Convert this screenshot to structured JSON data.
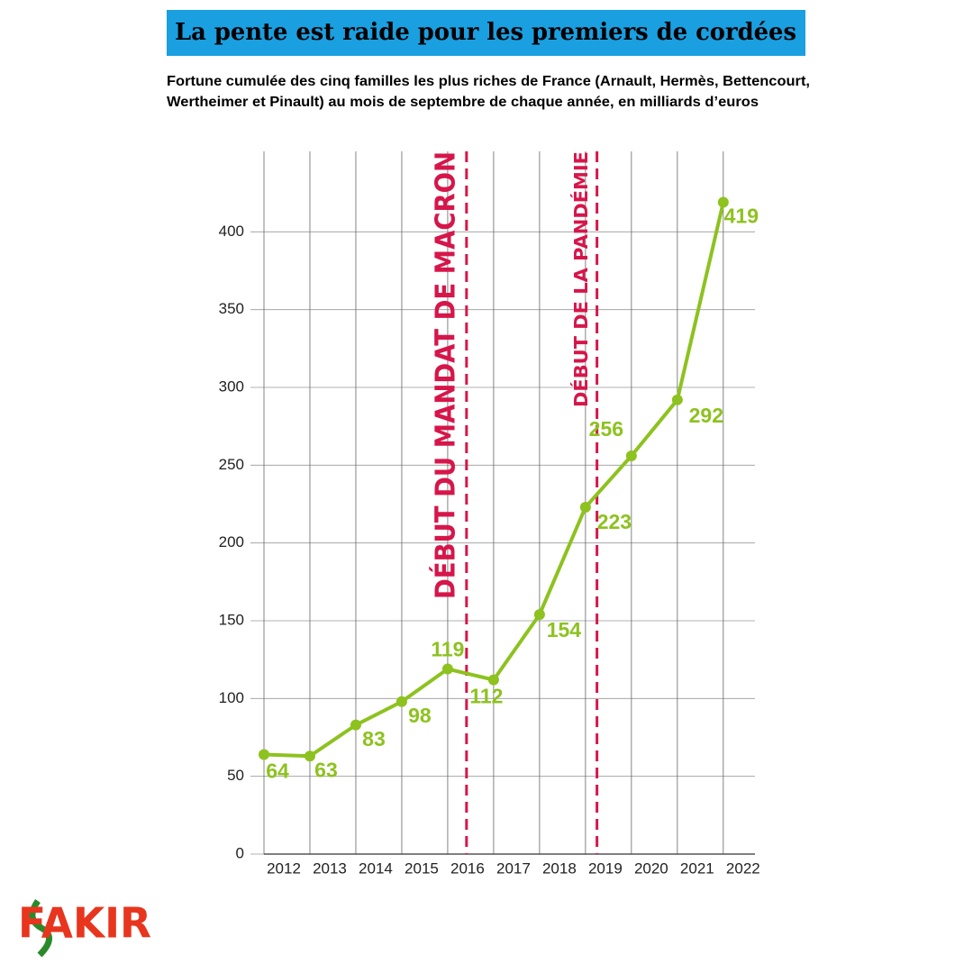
{
  "chart_data": {
    "type": "line",
    "title": "La pente est raide pour les premiers de cordées",
    "subtitle": [
      "Fortune cumulée des cinq familles les plus riches de France (Arnault, Hermès, Bettencourt,",
      "Wertheimer et Pinault) au mois de septembre de chaque année, en milliards d’euros"
    ],
    "x": [
      2012,
      2013,
      2014,
      2015,
      2016,
      2017,
      2018,
      2019,
      2020,
      2021,
      2022
    ],
    "series": [
      {
        "name": "Fortune cumulée",
        "color": "#8dc21f",
        "values": [
          64,
          63,
          83,
          98,
          119,
          112,
          154,
          223,
          256,
          292,
          419
        ]
      }
    ],
    "xlim": [
      2012,
      2022.69
    ],
    "xticks": [
      2012,
      2013,
      2014,
      2015,
      2016,
      2017,
      2018,
      2019,
      2020,
      2021,
      2022
    ],
    "ylim": [
      0,
      450
    ],
    "yticks": [
      0,
      50,
      100,
      150,
      200,
      250,
      300,
      350,
      400
    ],
    "grid": true,
    "annotations": [
      {
        "text": "DÉBUT DU MANDAT DE MACRON",
        "x": 2016.41,
        "color": "#d6164a"
      },
      {
        "text": "DÉBUT DE LA PANDÉMIE",
        "x": 2019.25,
        "color": "#d6164a"
      }
    ],
    "logo": "FAKIR"
  }
}
